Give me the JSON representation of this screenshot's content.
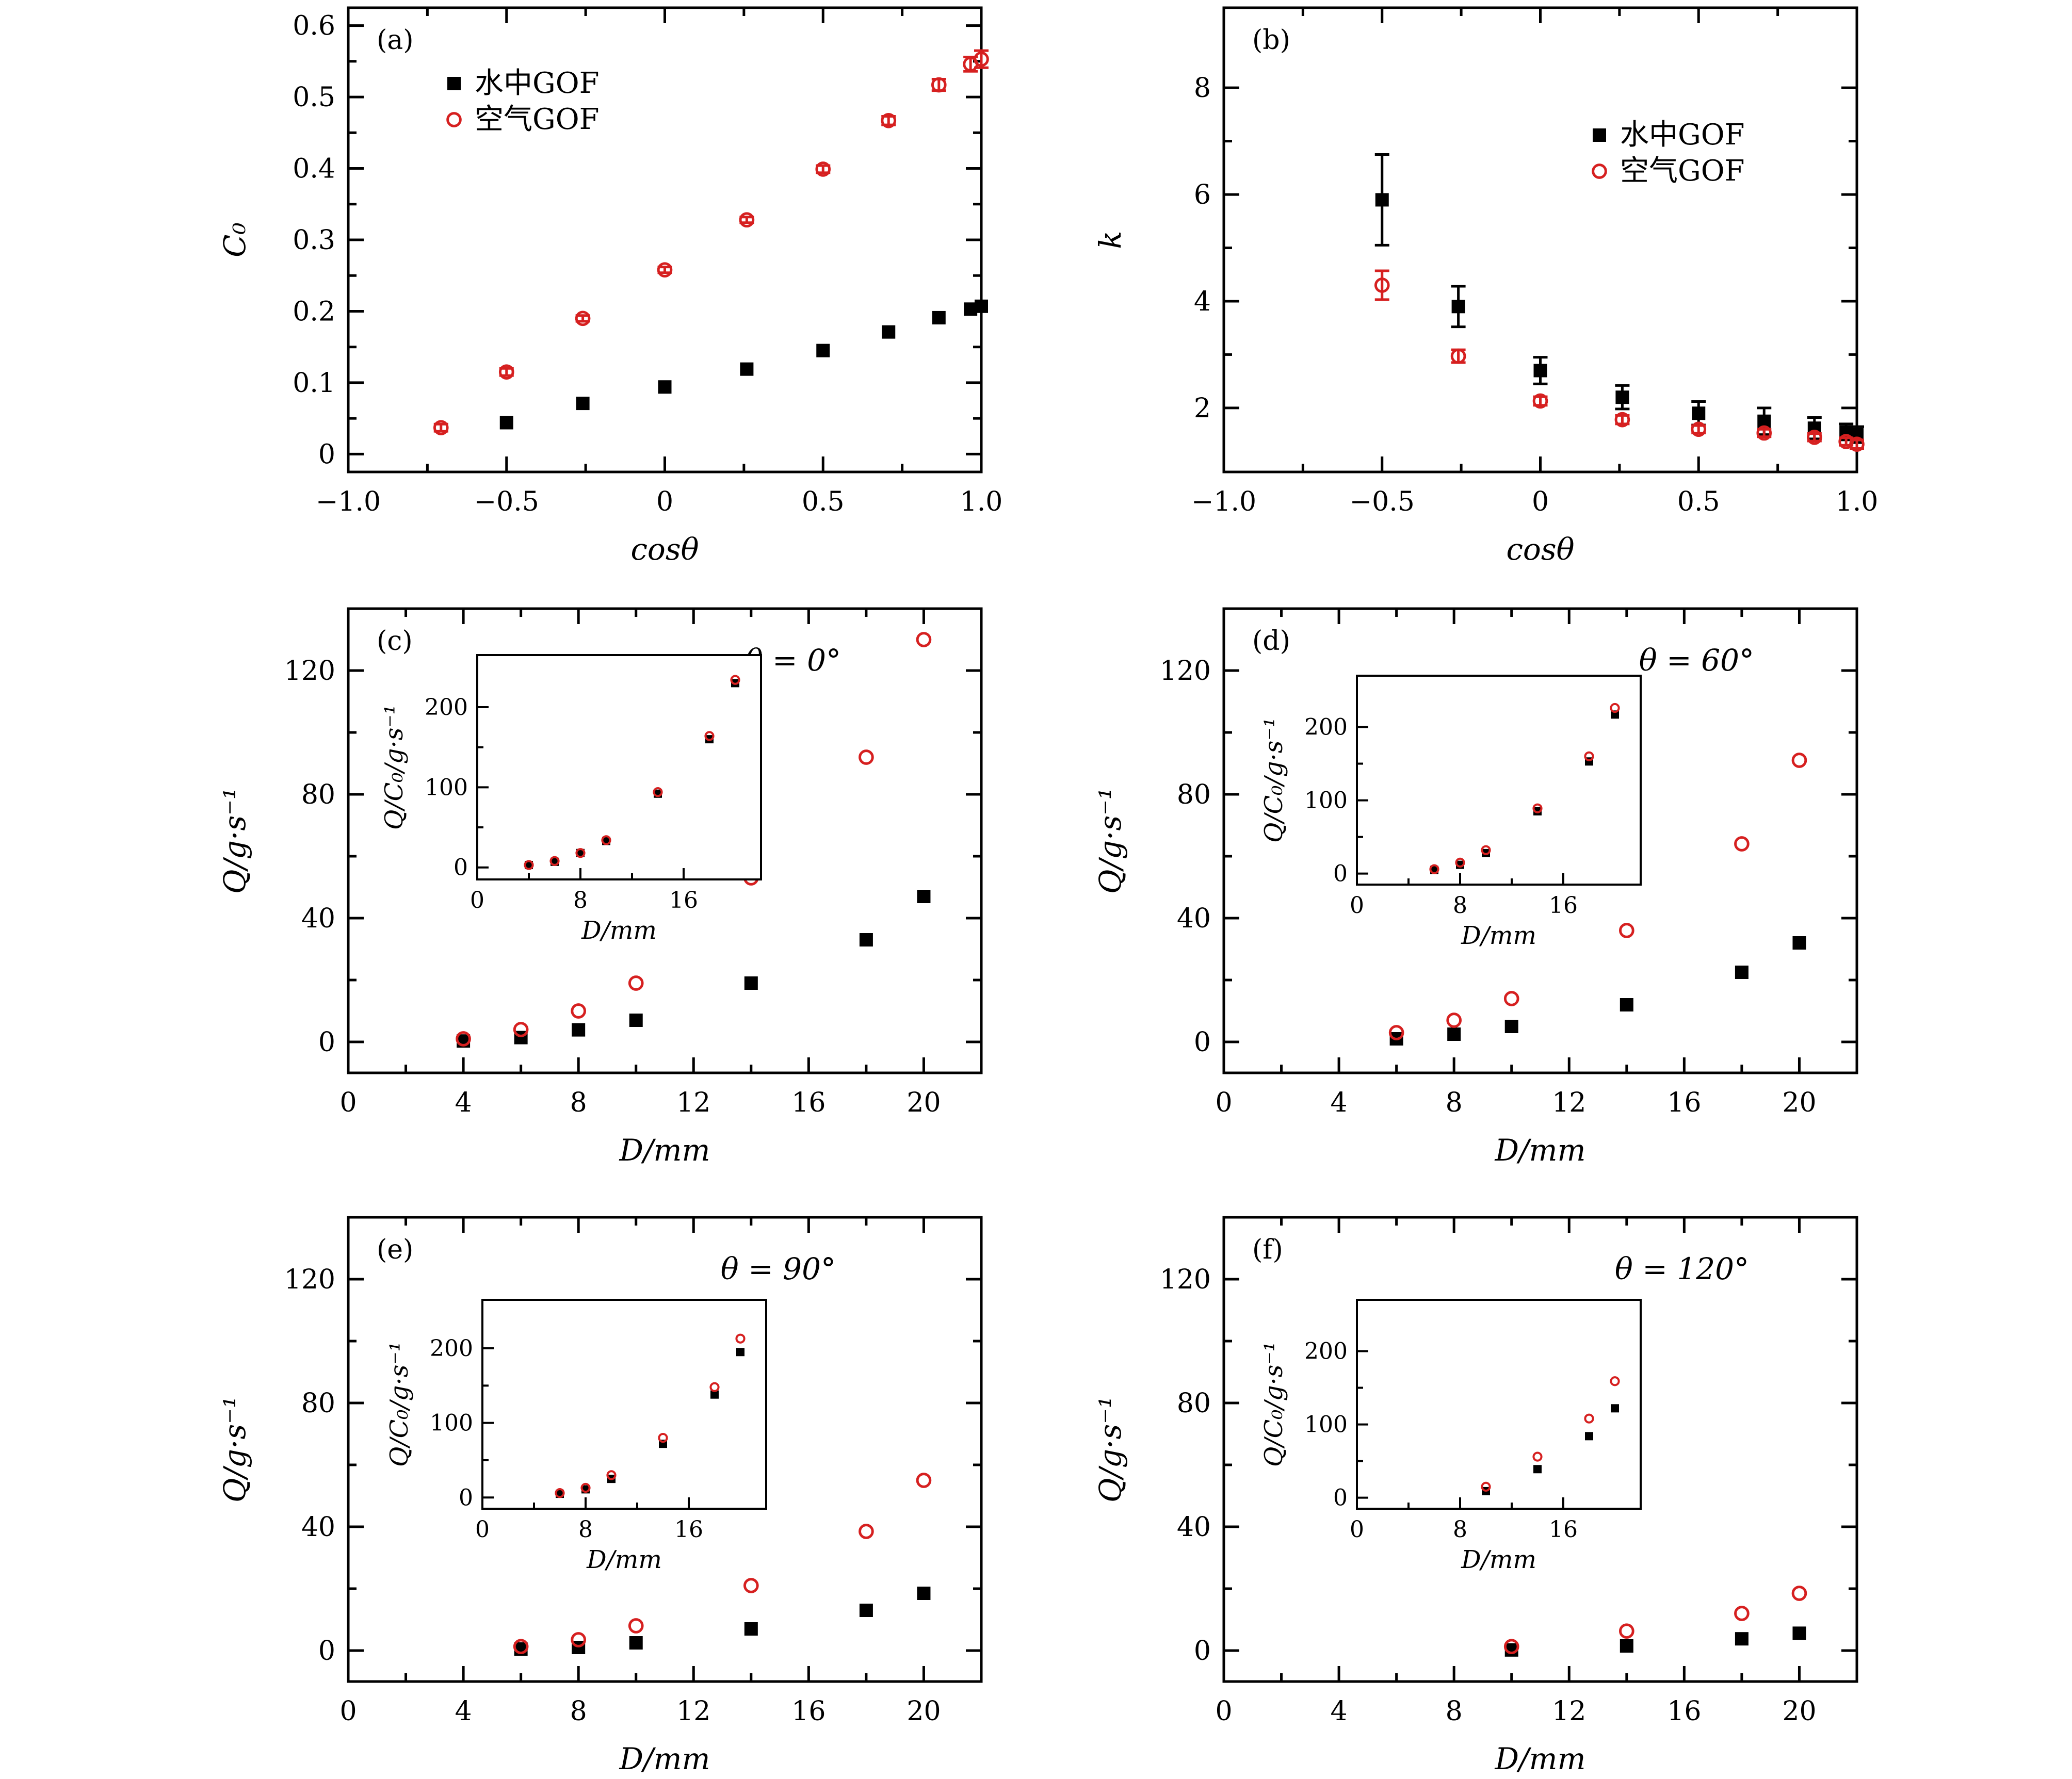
{
  "colors": {
    "water": "#000000",
    "air": "#d62020"
  },
  "chart_data": [
    {
      "panel": "(a)",
      "type": "scatter",
      "xlabel": "cosθ",
      "ylabel": "C₀",
      "xlim": [
        -1.0,
        1.0
      ],
      "ylim": [
        -0.025,
        0.625
      ],
      "xticks": [
        -1.0,
        -0.5,
        0,
        0.5,
        1.0
      ],
      "xtick_labels": [
        "−1.0",
        "−0.5",
        "0",
        "0.5",
        "1.0"
      ],
      "yticks": [
        0,
        0.1,
        0.2,
        0.3,
        0.4,
        0.5,
        0.6
      ],
      "ytick_labels": [
        "0",
        "0.1",
        "0.2",
        "0.3",
        "0.4",
        "0.5",
        "0.6"
      ],
      "annotation": "",
      "legend": {
        "placement": "top-left",
        "entries": [
          "水中GOF",
          "空气GOF"
        ]
      },
      "series": [
        {
          "name": "水中GOF",
          "marker": "square",
          "x": [
            -0.5,
            -0.259,
            0,
            0.259,
            0.5,
            0.707,
            0.866,
            0.966,
            1.0
          ],
          "y": [
            0.044,
            0.071,
            0.094,
            0.119,
            0.145,
            0.171,
            0.191,
            0.203,
            0.207
          ],
          "err": [
            0,
            0,
            0,
            0,
            0,
            0,
            0,
            0,
            0
          ]
        },
        {
          "name": "空气GOF",
          "marker": "circle",
          "x": [
            -0.707,
            -0.5,
            -0.259,
            0,
            0.259,
            0.5,
            0.707,
            0.866,
            0.966,
            1.0
          ],
          "y": [
            0.037,
            0.115,
            0.19,
            0.258,
            0.328,
            0.399,
            0.467,
            0.517,
            0.546,
            0.553
          ],
          "err": [
            0.005,
            0.005,
            0.004,
            0.004,
            0.004,
            0.005,
            0.006,
            0.008,
            0.01,
            0.012
          ]
        }
      ]
    },
    {
      "panel": "(b)",
      "type": "scatter",
      "xlabel": "cosθ",
      "ylabel": "k",
      "xlim": [
        -1.0,
        1.0
      ],
      "ylim": [
        0.8,
        9.5
      ],
      "xticks": [
        -1.0,
        -0.5,
        0,
        0.5,
        1.0
      ],
      "xtick_labels": [
        "−1.0",
        "−0.5",
        "0",
        "0.5",
        "1.0"
      ],
      "yticks": [
        2,
        4,
        6,
        8
      ],
      "ytick_labels": [
        "2",
        "4",
        "6",
        "8"
      ],
      "annotation": "",
      "legend": {
        "placement": "upper-right",
        "entries": [
          "水中GOF",
          "空气GOF"
        ]
      },
      "series": [
        {
          "name": "水中GOF",
          "marker": "square",
          "x": [
            -0.5,
            -0.259,
            0,
            0.259,
            0.5,
            0.707,
            0.866,
            0.966,
            1.0
          ],
          "y": [
            5.9,
            3.9,
            2.7,
            2.2,
            1.9,
            1.75,
            1.62,
            1.55,
            1.5
          ],
          "err": [
            0.85,
            0.38,
            0.25,
            0.22,
            0.22,
            0.25,
            0.2,
            0.15,
            0.15
          ]
        },
        {
          "name": "空气GOF",
          "marker": "circle",
          "x": [
            -0.5,
            -0.259,
            0,
            0.259,
            0.5,
            0.707,
            0.866,
            0.966,
            1.0
          ],
          "y": [
            4.3,
            2.97,
            2.13,
            1.78,
            1.6,
            1.53,
            1.45,
            1.37,
            1.32
          ],
          "err": [
            0.27,
            0.12,
            0.08,
            0.08,
            0.07,
            0.07,
            0.07,
            0.07,
            0.08
          ]
        }
      ]
    },
    {
      "panel": "(c)",
      "type": "scatter",
      "xlabel": "D/mm",
      "ylabel": "Q/g·s⁻¹",
      "xlim": [
        0,
        22
      ],
      "ylim": [
        -10,
        140
      ],
      "xticks": [
        0,
        4,
        8,
        12,
        16,
        20
      ],
      "xtick_labels": [
        "0",
        "4",
        "8",
        "12",
        "16",
        "20"
      ],
      "yticks": [
        0,
        40,
        80,
        120
      ],
      "ytick_labels": [
        "0",
        "40",
        "80",
        "120"
      ],
      "annotation": "θ = 0°",
      "series": [
        {
          "name": "水中GOF",
          "marker": "square",
          "x": [
            4,
            6,
            8,
            10,
            14,
            18,
            20
          ],
          "y": [
            0.3,
            1.4,
            3.9,
            7,
            19,
            33,
            47
          ]
        },
        {
          "name": "空气GOF",
          "marker": "circle",
          "x": [
            4,
            6,
            8,
            10,
            14,
            18,
            20
          ],
          "y": [
            1,
            4,
            10,
            19,
            53,
            92,
            130
          ]
        }
      ],
      "inset": {
        "xlabel": "D/mm",
        "ylabel": "Q/C₀/g·s⁻¹",
        "xlim": [
          0,
          22
        ],
        "ylim": [
          -15,
          265
        ],
        "xticks": [
          0,
          8,
          16
        ],
        "xtick_labels": [
          "0",
          "8",
          "16"
        ],
        "yticks": [
          0,
          100,
          200
        ],
        "ytick_labels": [
          "0",
          "100",
          "200"
        ],
        "series": [
          {
            "name": "水中GOF",
            "marker": "square",
            "x": [
              4,
              6,
              8,
              10,
              14,
              18,
              20
            ],
            "y": [
              3,
              7,
              18,
              33,
              92,
              160,
              230
            ]
          },
          {
            "name": "空气GOF",
            "marker": "circle",
            "x": [
              4,
              6,
              8,
              10,
              14,
              18,
              20
            ],
            "y": [
              3,
              8,
              18,
              34,
              94,
              164,
              234
            ]
          }
        ]
      }
    },
    {
      "panel": "(d)",
      "type": "scatter",
      "xlabel": "D/mm",
      "ylabel": "Q/g·s⁻¹",
      "xlim": [
        0,
        22
      ],
      "ylim": [
        -10,
        140
      ],
      "xticks": [
        0,
        4,
        8,
        12,
        16,
        20
      ],
      "xtick_labels": [
        "0",
        "4",
        "8",
        "12",
        "16",
        "20"
      ],
      "yticks": [
        0,
        40,
        80,
        120
      ],
      "ytick_labels": [
        "0",
        "40",
        "80",
        "120"
      ],
      "annotation": "θ = 60°",
      "series": [
        {
          "name": "水中GOF",
          "marker": "square",
          "x": [
            6,
            8,
            10,
            14,
            18,
            20
          ],
          "y": [
            1,
            2.5,
            5,
            12,
            22.5,
            32
          ]
        },
        {
          "name": "空气GOF",
          "marker": "circle",
          "x": [
            6,
            8,
            10,
            14,
            18,
            20
          ],
          "y": [
            3,
            7,
            14,
            36,
            64,
            91
          ]
        }
      ],
      "inset": {
        "xlabel": "D/mm",
        "ylabel": "Q/C₀/g·s⁻¹",
        "xlim": [
          0,
          22
        ],
        "ylim": [
          -15,
          270
        ],
        "xticks": [
          0,
          8,
          16
        ],
        "xtick_labels": [
          "0",
          "8",
          "16"
        ],
        "yticks": [
          0,
          100,
          200
        ],
        "ytick_labels": [
          "0",
          "100",
          "200"
        ],
        "series": [
          {
            "name": "水中GOF",
            "marker": "square",
            "x": [
              6,
              8,
              10,
              14,
              18,
              20
            ],
            "y": [
              5,
              12,
              28,
              85,
              153,
              217
            ]
          },
          {
            "name": "空气GOF",
            "marker": "circle",
            "x": [
              6,
              8,
              10,
              14,
              18,
              20
            ],
            "y": [
              6,
              15,
              32,
              89,
              160,
              226
            ]
          }
        ]
      }
    },
    {
      "panel": "(e)",
      "type": "scatter",
      "xlabel": "D/mm",
      "ylabel": "Q/g·s⁻¹",
      "xlim": [
        0,
        22
      ],
      "ylim": [
        -10,
        140
      ],
      "xticks": [
        0,
        4,
        8,
        12,
        16,
        20
      ],
      "xtick_labels": [
        "0",
        "4",
        "8",
        "12",
        "16",
        "20"
      ],
      "yticks": [
        0,
        40,
        80,
        120
      ],
      "ytick_labels": [
        "0",
        "40",
        "80",
        "120"
      ],
      "annotation": "θ = 90°",
      "series": [
        {
          "name": "水中GOF",
          "marker": "square",
          "x": [
            6,
            8,
            10,
            14,
            18,
            20
          ],
          "y": [
            0.5,
            1,
            2.5,
            7,
            13,
            18.5
          ]
        },
        {
          "name": "空气GOF",
          "marker": "circle",
          "x": [
            6,
            8,
            10,
            14,
            18,
            20
          ],
          "y": [
            1.3,
            3.5,
            8,
            21,
            38.5,
            55
          ]
        }
      ],
      "inset": {
        "xlabel": "D/mm",
        "ylabel": "Q/C₀/g·s⁻¹",
        "xlim": [
          0,
          22
        ],
        "ylim": [
          -15,
          265
        ],
        "xticks": [
          0,
          8,
          16
        ],
        "xtick_labels": [
          "0",
          "8",
          "16"
        ],
        "yticks": [
          0,
          100,
          200
        ],
        "ytick_labels": [
          "0",
          "100",
          "200"
        ],
        "series": [
          {
            "name": "水中GOF",
            "marker": "square",
            "x": [
              6,
              8,
              10,
              14,
              18,
              20
            ],
            "y": [
              5,
              11,
              25,
              72,
              138,
              195
            ]
          },
          {
            "name": "空气GOF",
            "marker": "circle",
            "x": [
              6,
              8,
              10,
              14,
              18,
              20
            ],
            "y": [
              6,
              13,
              30,
              80,
              148,
              213
            ]
          }
        ]
      }
    },
    {
      "panel": "(f)",
      "type": "scatter",
      "xlabel": "D/mm",
      "ylabel": "Q/g·s⁻¹",
      "xlim": [
        0,
        22
      ],
      "ylim": [
        -10,
        140
      ],
      "xticks": [
        0,
        4,
        8,
        12,
        16,
        20
      ],
      "xtick_labels": [
        "0",
        "4",
        "8",
        "12",
        "16",
        "20"
      ],
      "yticks": [
        0,
        40,
        80,
        120
      ],
      "ytick_labels": [
        "0",
        "40",
        "80",
        "120"
      ],
      "annotation": "θ = 120°",
      "series": [
        {
          "name": "水中GOF",
          "marker": "square",
          "x": [
            10,
            14,
            18,
            20
          ],
          "y": [
            0.2,
            1.5,
            3.8,
            5.6
          ]
        },
        {
          "name": "空气GOF",
          "marker": "circle",
          "x": [
            10,
            14,
            18,
            20
          ],
          "y": [
            1.3,
            6.3,
            12,
            18.5
          ]
        }
      ],
      "inset": {
        "xlabel": "D/mm",
        "ylabel": "Q/C₀/g·s⁻¹",
        "xlim": [
          0,
          22
        ],
        "ylim": [
          -15,
          270
        ],
        "xticks": [
          0,
          8,
          16
        ],
        "xtick_labels": [
          "0",
          "8",
          "16"
        ],
        "yticks": [
          0,
          100,
          200
        ],
        "ytick_labels": [
          "0",
          "100",
          "200"
        ],
        "series": [
          {
            "name": "水中GOF",
            "marker": "square",
            "x": [
              10,
              14,
              18,
              20
            ],
            "y": [
              9,
              39,
              84,
              122
            ]
          },
          {
            "name": "空气GOF",
            "marker": "circle",
            "x": [
              10,
              14,
              18,
              20
            ],
            "y": [
              15,
              56,
              108,
              159
            ]
          }
        ]
      }
    }
  ]
}
